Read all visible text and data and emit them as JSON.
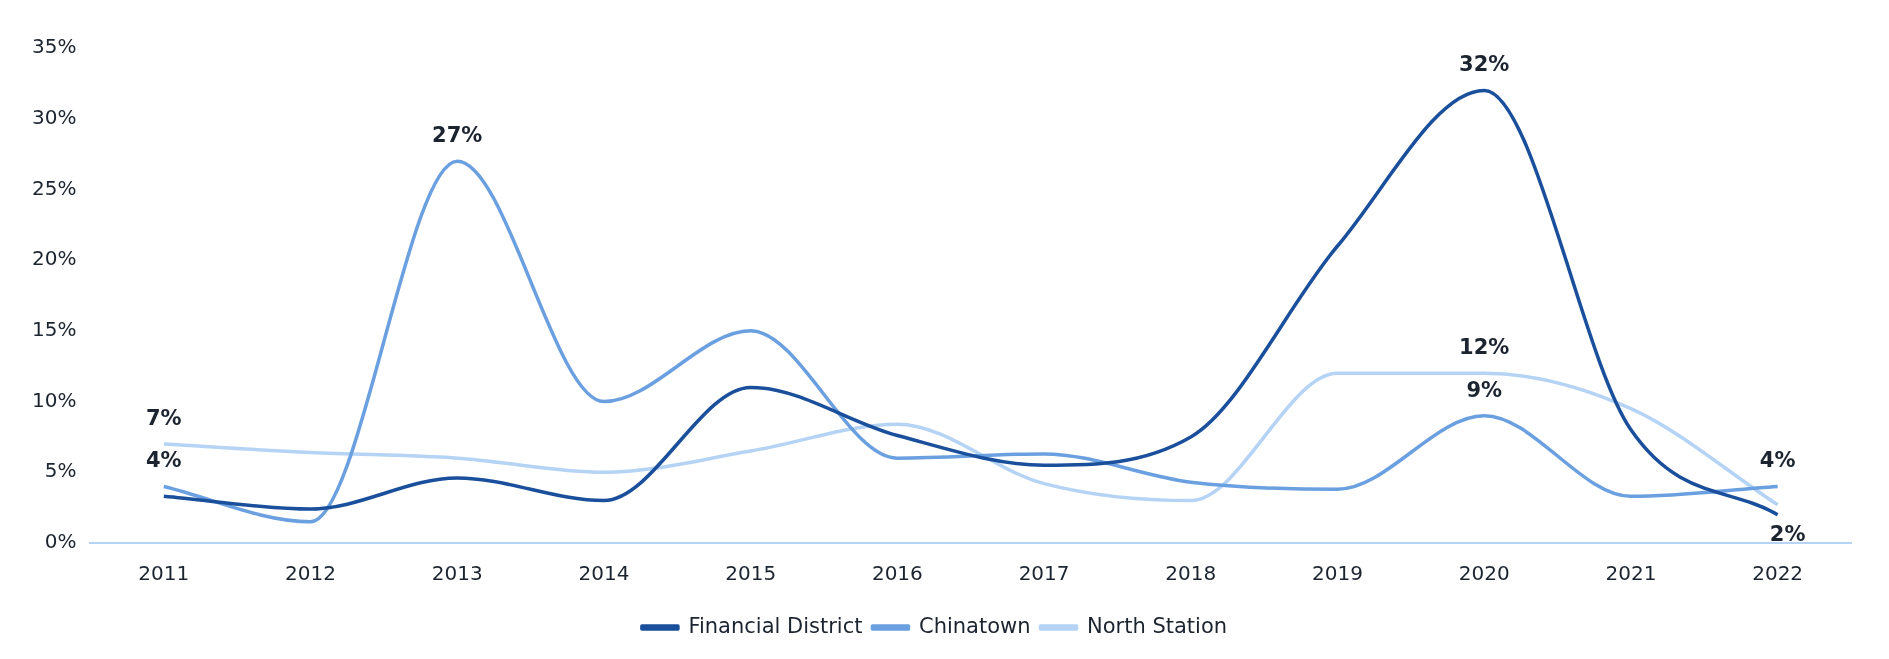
{
  "chart_data": {
    "type": "line",
    "categories": [
      "2011",
      "2012",
      "2013",
      "2014",
      "2015",
      "2016",
      "2017",
      "2018",
      "2019",
      "2020",
      "2021",
      "2022"
    ],
    "series": [
      {
        "name": "Financial District",
        "color": "#1a4f9c",
        "values": [
          3.3,
          2.4,
          4.6,
          3.0,
          11,
          7.6,
          5.5,
          7.5,
          21,
          32,
          8,
          2
        ],
        "value_labels": [
          null,
          null,
          null,
          null,
          null,
          null,
          null,
          null,
          null,
          "32%",
          null,
          "2%"
        ]
      },
      {
        "name": "Chinatown",
        "color": "#6a9fe0",
        "values": [
          4,
          1.5,
          27,
          10,
          15,
          6,
          6.3,
          4.3,
          3.8,
          9,
          3.3,
          4
        ],
        "value_labels": [
          "4%",
          null,
          "27%",
          null,
          null,
          null,
          null,
          null,
          null,
          "9%",
          null,
          "4%"
        ]
      },
      {
        "name": "North Station",
        "color": "#b5d3f5",
        "values": [
          7,
          6.4,
          6,
          5,
          6.5,
          8.4,
          4.2,
          3,
          12,
          12,
          9.5,
          2.7
        ],
        "value_labels": [
          "7%",
          null,
          null,
          null,
          null,
          null,
          null,
          null,
          null,
          "12%",
          null,
          null
        ]
      }
    ],
    "ylim": [
      0,
      35
    ],
    "yticks": [
      {
        "value": 0,
        "label": "0%"
      },
      {
        "value": 5,
        "label": "5%"
      },
      {
        "value": 10,
        "label": "10%"
      },
      {
        "value": 15,
        "label": "15%"
      },
      {
        "value": 20,
        "label": "20%"
      },
      {
        "value": 25,
        "label": "25%"
      },
      {
        "value": 30,
        "label": "30%"
      },
      {
        "value": 35,
        "label": "35%"
      }
    ],
    "grid": false,
    "legend": "bottom",
    "marker": "none",
    "line_style": "solid"
  }
}
